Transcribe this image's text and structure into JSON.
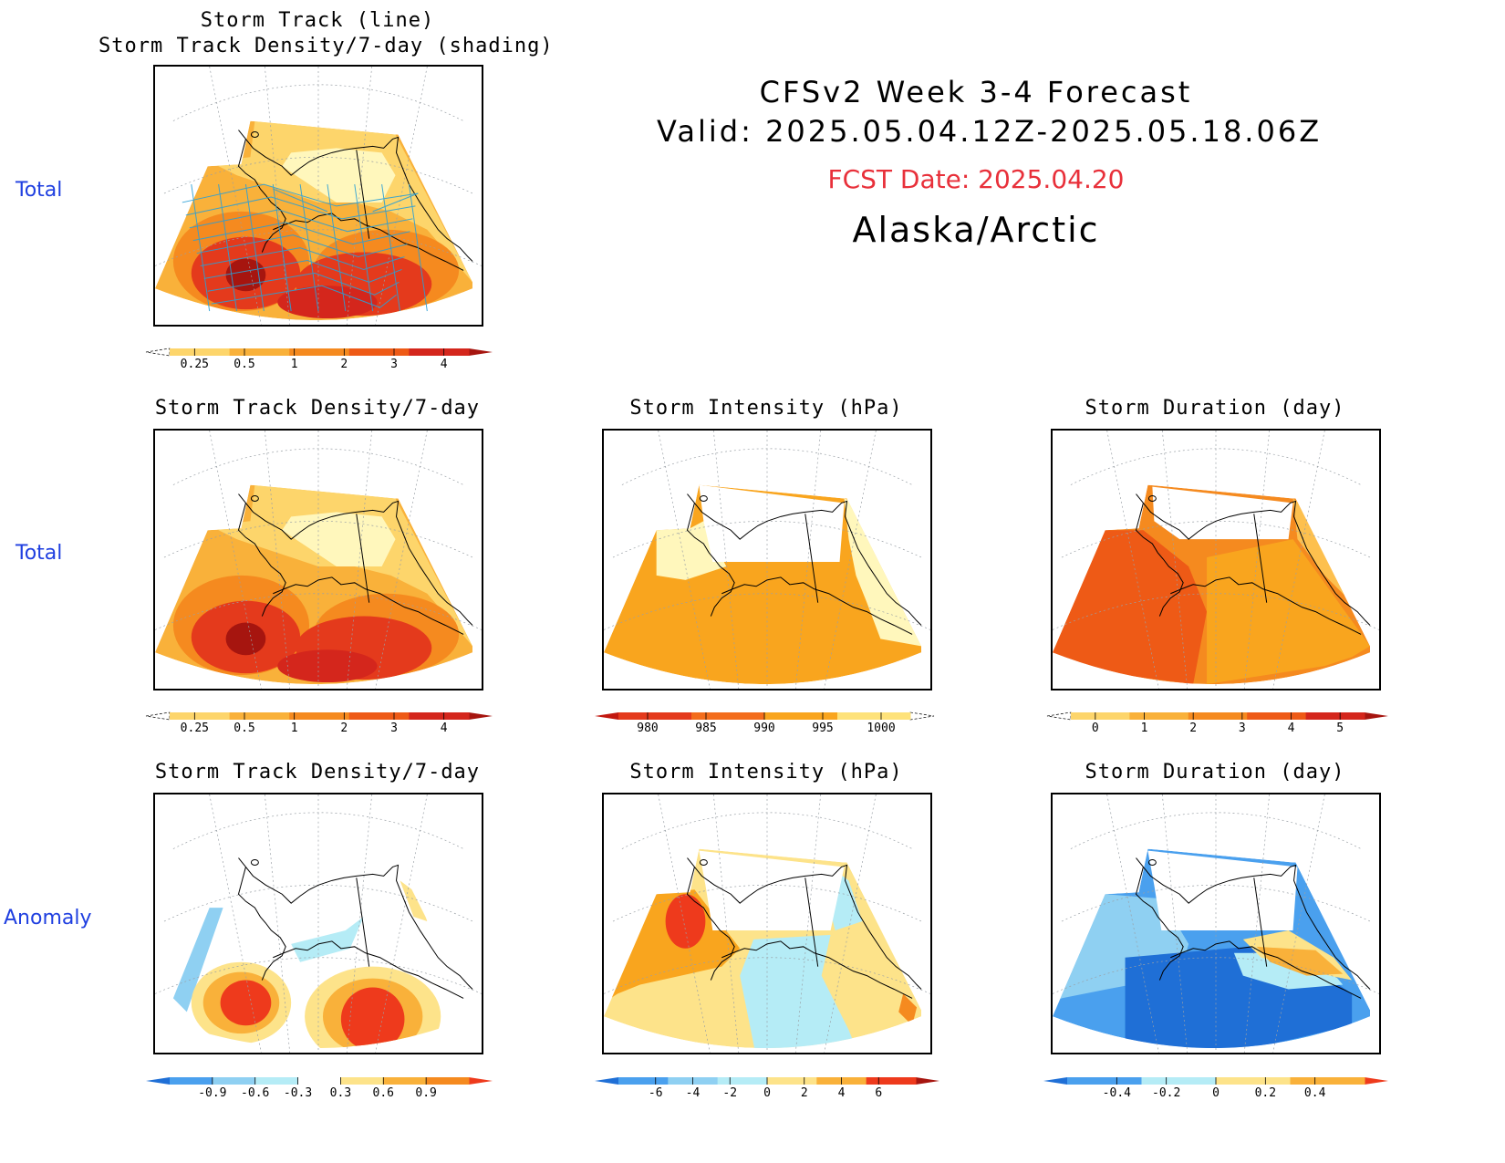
{
  "header": {
    "line1": "CFSv2 Week 3-4 Forecast",
    "line2": "Valid: 2025.05.04.12Z-2025.05.18.06Z",
    "fcst": "FCST Date: 2025.04.20",
    "region": "Alaska/Arctic"
  },
  "rows": {
    "top": "Total",
    "middle": "Total",
    "bottom": "Anomaly"
  },
  "panels": {
    "p1": {
      "title1": "Storm Track (line)",
      "title2": "Storm Track Density/7-day (shading)"
    },
    "p2": {
      "title": "Storm Track Density/7-day"
    },
    "p3": {
      "title": "Storm Intensity (hPa)"
    },
    "p4": {
      "title": "Storm Duration (day)"
    },
    "p5": {
      "title": "Storm Track Density/7-day"
    },
    "p6": {
      "title": "Storm Intensity (hPa)"
    },
    "p7": {
      "title": "Storm Duration (day)"
    }
  },
  "chart_data": [
    {
      "type": "heatmap",
      "panel": "p1",
      "title": "Storm Track (line) / Storm Track Density/7-day (shading)",
      "colorbar": {
        "ticks": [
          "0.25",
          "0.5",
          "1",
          "2",
          "3",
          "4"
        ],
        "colors": [
          "#fff7bc",
          "#fdd56b",
          "#f9b13a",
          "#f58a1f",
          "#ee5a16",
          "#d4261c",
          "#a6150f"
        ]
      }
    },
    {
      "type": "heatmap",
      "panel": "p2",
      "title": "Storm Track Density/7-day",
      "colorbar": {
        "ticks": [
          "0.25",
          "0.5",
          "1",
          "2",
          "3",
          "4"
        ],
        "colors": [
          "#fff7bc",
          "#fdd56b",
          "#f9b13a",
          "#f58a1f",
          "#ee5a16",
          "#d4261c",
          "#a6150f"
        ]
      }
    },
    {
      "type": "heatmap",
      "panel": "p3",
      "title": "Storm Intensity (hPa)",
      "colorbar": {
        "ticks": [
          "980",
          "985",
          "990",
          "995",
          "1000"
        ],
        "colors": [
          "#c2180f",
          "#e43a1c",
          "#f36d1c",
          "#f9a51e",
          "#fee27a",
          "#fff7bc"
        ]
      }
    },
    {
      "type": "heatmap",
      "panel": "p4",
      "title": "Storm Duration (day)",
      "colorbar": {
        "ticks": [
          "0",
          "1",
          "2",
          "3",
          "4",
          "5"
        ],
        "colors": [
          "#fff7bc",
          "#fdd56b",
          "#f9b13a",
          "#f58a1f",
          "#ee5a16",
          "#d4261c",
          "#a6150f"
        ]
      }
    },
    {
      "type": "heatmap",
      "panel": "p5",
      "title": "Storm Track Density/7-day (anomaly)",
      "colorbar": {
        "ticks": [
          "-0.9",
          "-0.6",
          "-0.3",
          "0.3",
          "0.6",
          "0.9"
        ],
        "colors": [
          "#1f6fd6",
          "#4aa0ee",
          "#8fd0f2",
          "#b5ecf6",
          "#ffffff",
          "#fde38a",
          "#f9b13a",
          "#f58a1f",
          "#ee3a1c"
        ]
      }
    },
    {
      "type": "heatmap",
      "panel": "p6",
      "title": "Storm Intensity (hPa) (anomaly)",
      "colorbar": {
        "ticks": [
          "-6",
          "-4",
          "-2",
          "0",
          "2",
          "4",
          "6"
        ],
        "colors": [
          "#1f6fd6",
          "#4aa0ee",
          "#8fd0f2",
          "#b5ecf6",
          "#fde38a",
          "#f9b13a",
          "#ee3a1c",
          "#a6150f"
        ]
      }
    },
    {
      "type": "heatmap",
      "panel": "p7",
      "title": "Storm Duration (day) (anomaly)",
      "colorbar": {
        "ticks": [
          "-0.4",
          "-0.2",
          "0",
          "0.2",
          "0.4"
        ],
        "colors": [
          "#1f6fd6",
          "#4aa0ee",
          "#b5ecf6",
          "#fde38a",
          "#f9b13a",
          "#ee3a1c"
        ]
      }
    }
  ]
}
